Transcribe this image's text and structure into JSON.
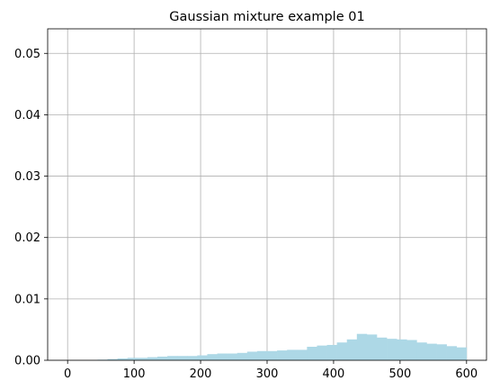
{
  "chart_data": {
    "type": "bar",
    "title": "Gaussian mixture example 01",
    "xlabel": "",
    "ylabel": "",
    "xlim": [
      -30,
      630
    ],
    "ylim": [
      0,
      0.054
    ],
    "xticks": [
      0,
      100,
      200,
      300,
      400,
      500,
      600
    ],
    "yticks": [
      0.0,
      0.01,
      0.02,
      0.03,
      0.04,
      0.05
    ],
    "ytick_labels": [
      "0.00",
      "0.01",
      "0.02",
      "0.03",
      "0.04",
      "0.05"
    ],
    "grid": true,
    "bar_color": "#add8e6",
    "bin_width": 15,
    "bins_start": [
      45,
      60,
      75,
      90,
      105,
      120,
      135,
      150,
      165,
      180,
      195,
      210,
      225,
      240,
      255,
      270,
      285,
      300,
      315,
      330,
      345,
      360,
      375,
      390,
      405,
      420,
      435,
      450,
      465,
      480,
      495,
      510,
      525,
      540,
      555,
      570,
      585
    ],
    "values": [
      0.0001,
      0.0002,
      0.0003,
      0.0004,
      0.0004,
      0.0005,
      0.0006,
      0.0007,
      0.0007,
      0.0007,
      0.0008,
      0.001,
      0.0011,
      0.0011,
      0.0012,
      0.0014,
      0.0015,
      0.0015,
      0.0016,
      0.0017,
      0.0017,
      0.0022,
      0.0024,
      0.0025,
      0.0029,
      0.0034,
      0.0043,
      0.0042,
      0.0037,
      0.0035,
      0.0034,
      0.0033,
      0.0029,
      0.0027,
      0.0026,
      0.0023,
      0.0021
    ]
  }
}
